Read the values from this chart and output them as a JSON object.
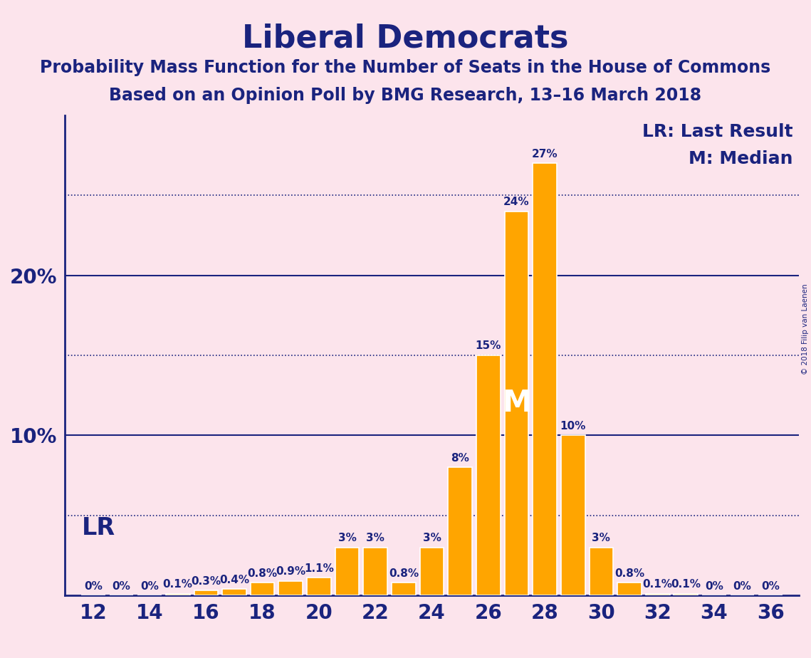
{
  "title": "Liberal Democrats",
  "subtitle1": "Probability Mass Function for the Number of Seats in the House of Commons",
  "subtitle2": "Based on an Opinion Poll by BMG Research, 13–16 March 2018",
  "watermark": "© 2018 Filip van Laenen",
  "legend_lr": "LR: Last Result",
  "legend_m": "M: Median",
  "lr_label": "LR",
  "median_label": "M",
  "background_color": "#fce4ec",
  "bar_color": "#FFA500",
  "bar_edge_color": "#FFFFFF",
  "text_color": "#1a237e",
  "axis_color": "#1a237e",
  "grid_color": "#1a237e",
  "seats": [
    12,
    13,
    14,
    15,
    16,
    17,
    18,
    19,
    20,
    21,
    22,
    23,
    24,
    25,
    26,
    27,
    28,
    29,
    30,
    31,
    32,
    33,
    34,
    35,
    36
  ],
  "probabilities": [
    0.0,
    0.0,
    0.0,
    0.1,
    0.3,
    0.4,
    0.8,
    0.9,
    1.1,
    3.0,
    3.0,
    0.8,
    3.0,
    8.0,
    15.0,
    24.0,
    27.0,
    10.0,
    3.0,
    0.8,
    0.1,
    0.1,
    0.0,
    0.0,
    0.0
  ],
  "median_seat": 27,
  "xlim": [
    11,
    37
  ],
  "ylim": [
    0,
    30
  ],
  "xticks": [
    12,
    14,
    16,
    18,
    20,
    22,
    24,
    26,
    28,
    30,
    32,
    34,
    36
  ],
  "solid_yticks": [
    10,
    20
  ],
  "dotted_yticks": [
    5,
    15,
    25
  ],
  "title_fontsize": 32,
  "subtitle_fontsize": 17,
  "tick_fontsize": 20,
  "legend_fontsize": 18,
  "bar_label_fontsize": 11,
  "lr_fontsize": 24,
  "median_fontsize": 30
}
